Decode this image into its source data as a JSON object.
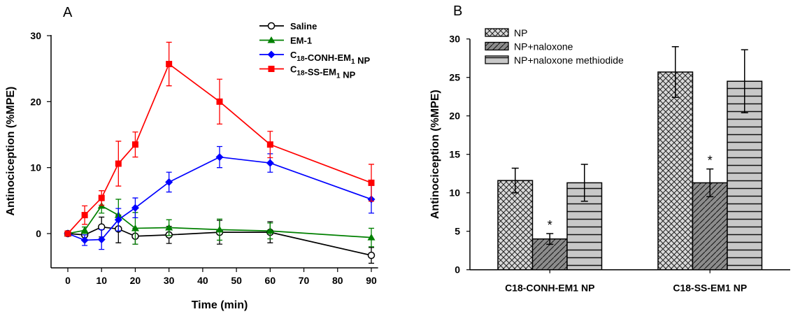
{
  "chart_data": [
    {
      "panel": "A",
      "type": "line",
      "xlabel": "Time (min)",
      "ylabel": "Antinociception (%MPE)",
      "xlim": [
        -5,
        92
      ],
      "ylim": [
        -5,
        30
      ],
      "xticks": [
        0,
        10,
        20,
        30,
        40,
        50,
        60,
        70,
        80,
        90
      ],
      "yticks": [
        0,
        10,
        20,
        30
      ],
      "grid": false,
      "legend_position": "top-right",
      "x": [
        0,
        5,
        10,
        15,
        20,
        30,
        45,
        60,
        90
      ],
      "series": [
        {
          "name": "Saline",
          "color": "#000000",
          "marker": "open-circle",
          "values": [
            0,
            -0.2,
            1.0,
            0.7,
            -0.4,
            -0.2,
            0.2,
            0.2,
            -3.3
          ],
          "errors": [
            0,
            0.3,
            1.5,
            2.1,
            1.2,
            1.3,
            1.8,
            1.6,
            1.2
          ]
        },
        {
          "name": "EM-1",
          "color": "#008000",
          "marker": "triangle",
          "values": [
            0,
            0.5,
            4.2,
            2.8,
            0.8,
            0.9,
            0.6,
            0.4,
            -0.6
          ],
          "errors": [
            0,
            0.5,
            1.1,
            2.4,
            2.4,
            1.2,
            1.6,
            1.2,
            1.4
          ]
        },
        {
          "name": "C18-CONH-EM1 NP",
          "color": "#0000ff",
          "marker": "diamond",
          "values": [
            0,
            -1.0,
            -0.9,
            2.1,
            3.9,
            7.8,
            11.6,
            10.7,
            5.2
          ],
          "errors": [
            0,
            0.8,
            1.5,
            1.7,
            1.5,
            1.5,
            1.6,
            1.4,
            2.1
          ]
        },
        {
          "name": "C18-SS-EM1 NP",
          "color": "#ff0000",
          "marker": "square",
          "values": [
            0,
            2.8,
            5.4,
            10.6,
            13.5,
            25.7,
            20.0,
            13.5,
            7.7
          ],
          "errors": [
            0,
            1.4,
            1.1,
            3.4,
            1.9,
            3.3,
            3.4,
            2.0,
            2.8
          ]
        }
      ]
    },
    {
      "panel": "B",
      "type": "bar",
      "xlabel": "",
      "ylabel": "Antinociception (%MPE)",
      "ylim": [
        0,
        30
      ],
      "yticks": [
        0,
        5,
        10,
        15,
        20,
        25,
        30
      ],
      "grid": false,
      "legend_position": "top-left",
      "categories": [
        "C18-CONH-EM1 NP",
        "C18-SS-EM1 NP"
      ],
      "series": [
        {
          "name": "NP",
          "pattern": "crosshatch",
          "values": [
            11.6,
            25.7
          ],
          "errors": [
            1.6,
            3.3
          ]
        },
        {
          "name": "NP+naloxone",
          "pattern": "diagonal",
          "values": [
            4.0,
            11.3
          ],
          "errors": [
            0.7,
            1.8
          ],
          "annotation": [
            "*",
            "*"
          ]
        },
        {
          "name": "NP+naloxone methiodide",
          "pattern": "horizontal",
          "values": [
            11.3,
            24.5
          ],
          "errors": [
            2.4,
            4.1
          ]
        }
      ]
    }
  ]
}
